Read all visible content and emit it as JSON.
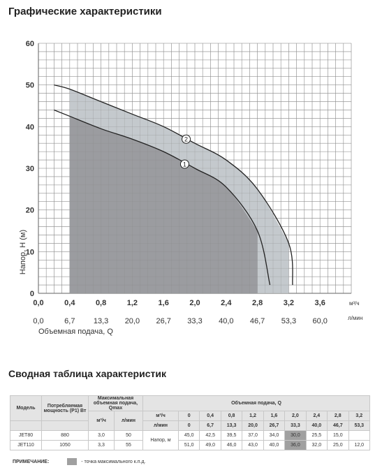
{
  "page_title": "Графические характеристики",
  "table_title": "Сводная таблица характеристик",
  "chart_data": {
    "type": "line",
    "xlabel": "Объемная подача, Q",
    "ylabel": "Напор, H (м)",
    "x_unit": "м³/ч",
    "x2_unit": "л/мин",
    "xlim": [
      0,
      4.0
    ],
    "ylim": [
      0,
      60
    ],
    "grid": true,
    "x_ticks": [
      "0,0",
      "0,4",
      "0,8",
      "1,2",
      "1,6",
      "2,0",
      "2,4",
      "2,8",
      "3,2",
      "3,6"
    ],
    "x2_ticks": [
      "0,0",
      "6,7",
      "13,3",
      "20,0",
      "26,7",
      "33,3",
      "40,0",
      "46,7",
      "53,3",
      "60,0"
    ],
    "y_ticks": [
      "0",
      "10",
      "20",
      "30",
      "40",
      "50",
      "60"
    ],
    "series": [
      {
        "name": "1",
        "x": [
          0.2,
          0.4,
          0.8,
          1.2,
          1.6,
          2.0,
          2.4,
          2.8,
          2.96
        ],
        "y": [
          44.0,
          42.5,
          39.5,
          37.0,
          34.0,
          30.0,
          25.5,
          15.0,
          2.0
        ],
        "max_eff_range": [
          0.4,
          2.8
        ]
      },
      {
        "name": "2",
        "x": [
          0.2,
          0.4,
          0.8,
          1.2,
          1.6,
          2.0,
          2.4,
          2.8,
          3.2,
          3.25
        ],
        "y": [
          50.0,
          49.0,
          46.0,
          43.0,
          40.0,
          36.0,
          32.0,
          25.0,
          12.0,
          2.0
        ],
        "max_eff_range": [
          0.4,
          3.2
        ]
      }
    ],
    "highlight_colors": {
      "inner": "#9b9ca0",
      "outer": "#c4c9cd"
    }
  },
  "table": {
    "header": {
      "model": "Модель",
      "power": "Потребляемая мощность (P1) Вт",
      "qmax": "Максимальная объемная подача, Qmax",
      "qmax_m3": "м³/ч",
      "qmax_lmin": "л/мин",
      "flow": "Объемная подача, Q",
      "unit_m3": "м³/ч",
      "unit_lmin": "л/мин",
      "q_m3": [
        "0",
        "0,4",
        "0,8",
        "1,2",
        "1,6",
        "2,0",
        "2,4",
        "2,8",
        "3,2"
      ],
      "q_lmin": [
        "0",
        "6,7",
        "13,3",
        "20,0",
        "26,7",
        "33,3",
        "40,0",
        "46,7",
        "53,3"
      ],
      "head_label": "Напор, м"
    },
    "rows": [
      {
        "model": "JET80",
        "power": "880",
        "qmax_m3": "3,0",
        "qmax_lmin": "50",
        "values": [
          "45,0",
          "42,5",
          "39,5",
          "37,0",
          "34,0",
          "30,0",
          "25,5",
          "15,0",
          ""
        ],
        "grey_index": 5
      },
      {
        "model": "JET110",
        "power": "1050",
        "qmax_m3": "3,3",
        "qmax_lmin": "55",
        "values": [
          "51,0",
          "49,0",
          "46,0",
          "43,0",
          "40,0",
          "36,0",
          "32,0",
          "25,0",
          "12,0"
        ],
        "grey_index": 5
      }
    ]
  },
  "note": {
    "label": "ПРИМЕЧАНИЕ:",
    "text": "- точка максимального к.п.д."
  }
}
